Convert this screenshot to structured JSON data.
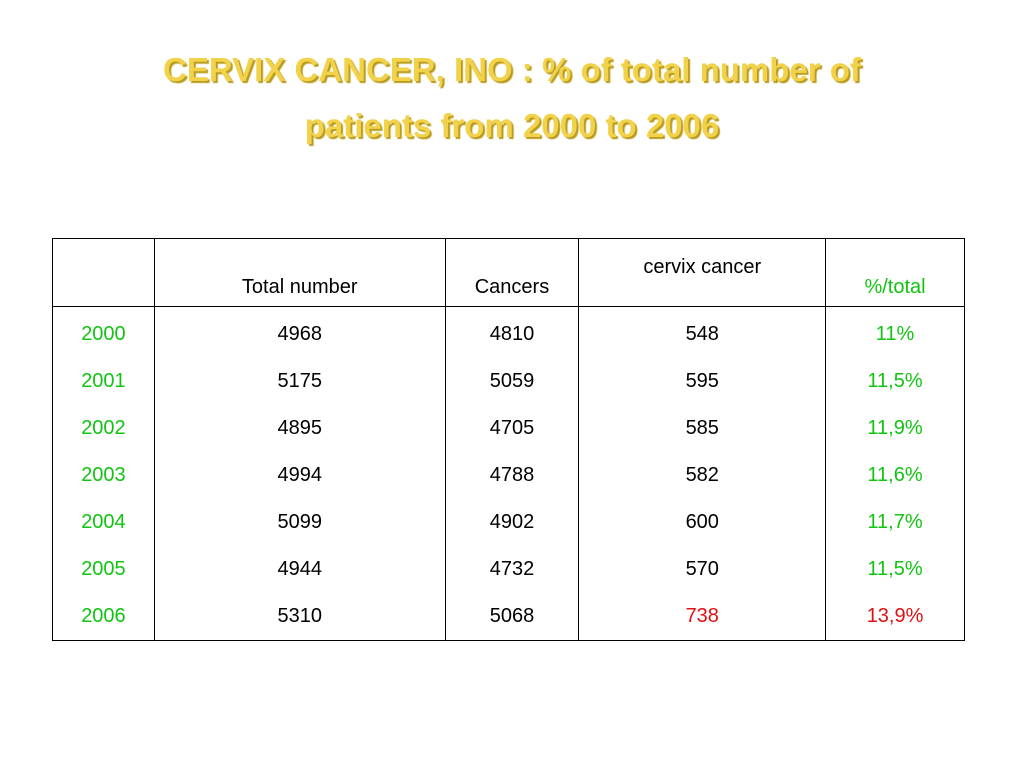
{
  "title": {
    "line1": "CERVIX CANCER, INO : % of total number of",
    "line2": "patients from 2000 to 2006"
  },
  "table": {
    "headers": [
      "",
      "Total number",
      "Cancers",
      "cervix cancer",
      "%/total"
    ],
    "rows": [
      {
        "year": "2000",
        "total": "4968",
        "cancers": "4810",
        "cervix": "548",
        "pct": "11%"
      },
      {
        "year": "2001",
        "total": "5175",
        "cancers": "5059",
        "cervix": "595",
        "pct": "11,5%"
      },
      {
        "year": "2002",
        "total": "4895",
        "cancers": "4705",
        "cervix": "585",
        "pct": "11,9%"
      },
      {
        "year": "2003",
        "total": "4994",
        "cancers": "4788",
        "cervix": "582",
        "pct": "11,6%"
      },
      {
        "year": "2004",
        "total": "5099",
        "cancers": "4902",
        "cervix": "600",
        "pct": "11,7%"
      },
      {
        "year": "2005",
        "total": "4944",
        "cancers": "4732",
        "cervix": "570",
        "pct": "11,5%"
      },
      {
        "year": "2006",
        "total": "5310",
        "cancers": "5068",
        "cervix": "738",
        "pct": "13,9%"
      }
    ]
  },
  "colors": {
    "title": "#f2d24a",
    "year_and_pct": "#12c412",
    "highlight": "#e01010"
  }
}
